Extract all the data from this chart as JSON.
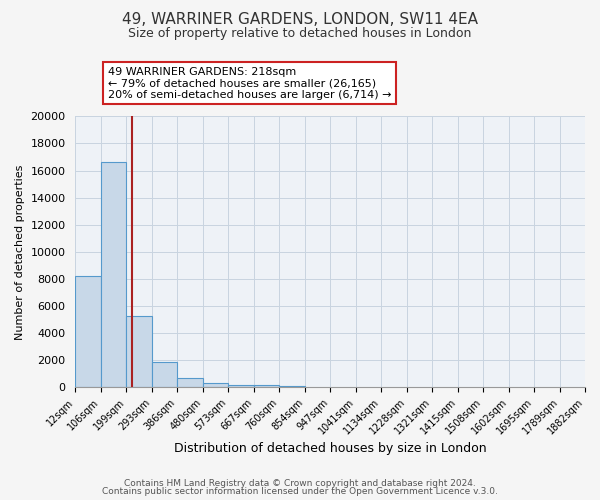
{
  "title": "49, WARRINER GARDENS, LONDON, SW11 4EA",
  "subtitle": "Size of property relative to detached houses in London",
  "xlabel": "Distribution of detached houses by size in London",
  "ylabel": "Number of detached properties",
  "bar_values": [
    8200,
    16600,
    5300,
    1850,
    700,
    300,
    200,
    150,
    100
  ],
  "bar_left_edges": [
    12,
    106,
    199,
    293,
    386,
    480,
    573,
    667,
    760
  ],
  "bar_widths": [
    94,
    93,
    94,
    93,
    94,
    93,
    94,
    93,
    94
  ],
  "all_bins": [
    12,
    106,
    199,
    293,
    386,
    480,
    573,
    667,
    760,
    854,
    947,
    1041,
    1134,
    1228,
    1321,
    1415,
    1508,
    1602,
    1695,
    1789,
    1882
  ],
  "tick_labels": [
    "12sqm",
    "106sqm",
    "199sqm",
    "293sqm",
    "386sqm",
    "480sqm",
    "573sqm",
    "667sqm",
    "760sqm",
    "854sqm",
    "947sqm",
    "1041sqm",
    "1134sqm",
    "1228sqm",
    "1321sqm",
    "1415sqm",
    "1508sqm",
    "1602sqm",
    "1695sqm",
    "1789sqm",
    "1882sqm"
  ],
  "bar_color": "#c8d8e8",
  "bar_edge_color": "#5599cc",
  "property_value": 218,
  "vline_x": 218,
  "vline_color": "#aa2222",
  "annotation_title": "49 WARRINER GARDENS: 218sqm",
  "annotation_line1": "← 79% of detached houses are smaller (26,165)",
  "annotation_line2": "20% of semi-detached houses are larger (6,714) →",
  "annotation_box_color": "#ffffff",
  "annotation_box_edge": "#cc2222",
  "ylim": [
    0,
    20000
  ],
  "yticks": [
    0,
    2000,
    4000,
    6000,
    8000,
    10000,
    12000,
    14000,
    16000,
    18000,
    20000
  ],
  "grid_color": "#c8d4e0",
  "bg_color": "#eef2f7",
  "fig_bg_color": "#f5f5f5",
  "footer_line1": "Contains HM Land Registry data © Crown copyright and database right 2024.",
  "footer_line2": "Contains public sector information licensed under the Open Government Licence v.3.0."
}
